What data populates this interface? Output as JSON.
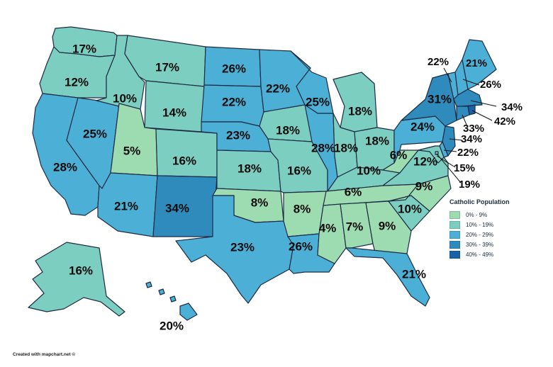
{
  "legend": {
    "title": "Catholic Population",
    "items": [
      {
        "label": "0% - 9%",
        "color": "#9ddcb1"
      },
      {
        "label": "10% - 19%",
        "color": "#7ccfc0"
      },
      {
        "label": "20% - 29%",
        "color": "#4cb0d6"
      },
      {
        "label": "30% - 39%",
        "color": "#2e8bbc"
      },
      {
        "label": "40% - 49%",
        "color": "#1a62a8"
      }
    ]
  },
  "credit": "Created with mapchart.net ©",
  "states": {
    "WA": "17%",
    "OR": "12%",
    "CA": "28%",
    "NV": "25%",
    "ID": "10%",
    "MT": "17%",
    "WY": "14%",
    "UT": "5%",
    "CO": "16%",
    "AZ": "21%",
    "NM": "34%",
    "ND": "26%",
    "SD": "22%",
    "NE": "23%",
    "KS": "18%",
    "OK": "8%",
    "TX": "23%",
    "MN": "22%",
    "IA": "18%",
    "MO": "16%",
    "AR": "8%",
    "LA": "26%",
    "WI": "25%",
    "IL": "28%",
    "MI": "18%",
    "IN": "18%",
    "OH": "18%",
    "KY": "10%",
    "TN": "6%",
    "MS": "4%",
    "AL": "7%",
    "GA": "9%",
    "FL": "21%",
    "SC": "10%",
    "NC": "9%",
    "VA": "12%",
    "WV": "6%",
    "PA": "24%",
    "NY": "31%",
    "VT": "22%",
    "NH": "26%",
    "ME": "21%",
    "MA": "34%",
    "RI": "42%",
    "CT": "33%",
    "NJ": "34%",
    "DE": "22%",
    "MD": "15%",
    "DC": "19%",
    "AK": "16%",
    "HI": "20%"
  }
}
